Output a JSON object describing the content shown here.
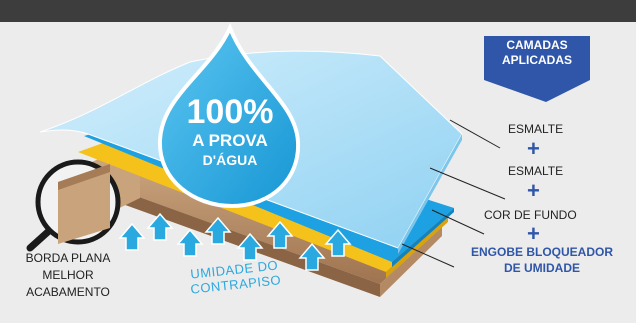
{
  "badge": {
    "line1": "CAMADAS",
    "line2": "APLICADAS"
  },
  "drop": {
    "percent": "100%",
    "line1": "A PROVA",
    "line2": "D'ÁGUA"
  },
  "layers": {
    "layer1": "ESMALTE",
    "layer2": "ESMALTE",
    "layer3": "COR DE FUNDO",
    "layer4_line1": "ENGOBE BLOQUEADOR",
    "layer4_line2": "DE UMIDADE",
    "separator": "+"
  },
  "edge": {
    "line1": "BORDA PLANA",
    "line2": "MELHOR",
    "line3": "ACABAMENTO"
  },
  "moisture": {
    "line1": "UMIDADE DO",
    "line2": "CONTRAPISO"
  },
  "colors": {
    "top_bar": "#3d3d3d",
    "background": "#ececec",
    "badge": "#2f56a8",
    "glaze_light": "#a9dcf5",
    "glaze_blue": "#1da1e2",
    "base_color": "#f5c21b",
    "engobe": "#b98b63",
    "drop": "#29aee6",
    "accent_text": "#2f56a8"
  }
}
